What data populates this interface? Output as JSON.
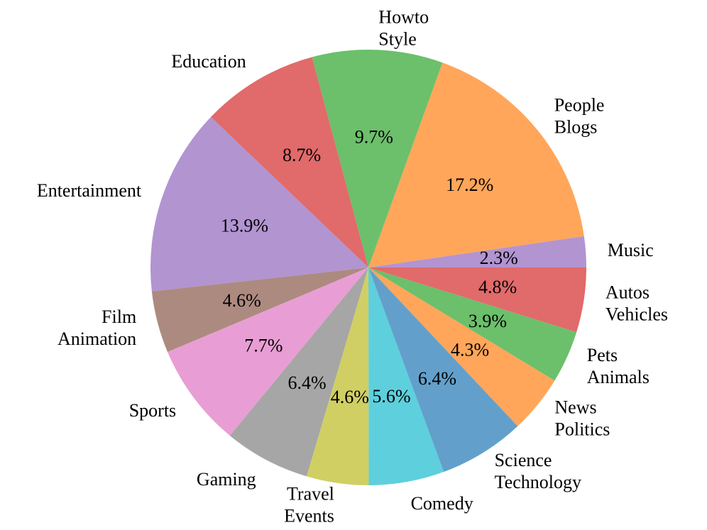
{
  "chart_data": {
    "type": "pie",
    "start_angle_deg": 0,
    "direction": "counterclockwise",
    "slices": [
      {
        "label": [
          "Music"
        ],
        "value": 2.3,
        "pct_label": "2.3%",
        "color": "#b294d1"
      },
      {
        "label": [
          "People",
          "Blogs"
        ],
        "value": 17.2,
        "pct_label": "17.2%",
        "color": "#ffa65a"
      },
      {
        "label": [
          "Howto",
          "Style"
        ],
        "value": 9.7,
        "pct_label": "9.7%",
        "color": "#6cbf6b"
      },
      {
        "label": [
          "Education"
        ],
        "value": 8.7,
        "pct_label": "8.7%",
        "color": "#e16a6a"
      },
      {
        "label": [
          "Entertainment"
        ],
        "value": 13.9,
        "pct_label": "13.9%",
        "color": "#b294d1"
      },
      {
        "label": [
          "Film",
          "Animation"
        ],
        "value": 4.6,
        "pct_label": "4.6%",
        "color": "#ad8a80"
      },
      {
        "label": [
          "Sports"
        ],
        "value": 7.7,
        "pct_label": "7.7%",
        "color": "#e89ed4"
      },
      {
        "label": [
          "Gaming"
        ],
        "value": 6.4,
        "pct_label": "6.4%",
        "color": "#a6a6a6"
      },
      {
        "label": [
          "Travel",
          "Events"
        ],
        "value": 4.6,
        "pct_label": "4.6%",
        "color": "#d0cf63"
      },
      {
        "label": [
          "Comedy"
        ],
        "value": 5.6,
        "pct_label": "5.6%",
        "color": "#5ecfdd"
      },
      {
        "label": [
          "Science",
          "Technology"
        ],
        "value": 6.4,
        "pct_label": "6.4%",
        "color": "#62a0cb"
      },
      {
        "label": [
          "News",
          "Politics"
        ],
        "value": 4.3,
        "pct_label": "4.3%",
        "color": "#ffa65a"
      },
      {
        "label": [
          "Pets",
          "Animals"
        ],
        "value": 3.9,
        "pct_label": "3.9%",
        "color": "#6cbf6b"
      },
      {
        "label": [
          "Autos",
          "Vehicles"
        ],
        "value": 4.8,
        "pct_label": "4.8%",
        "color": "#e16a6a"
      }
    ]
  }
}
